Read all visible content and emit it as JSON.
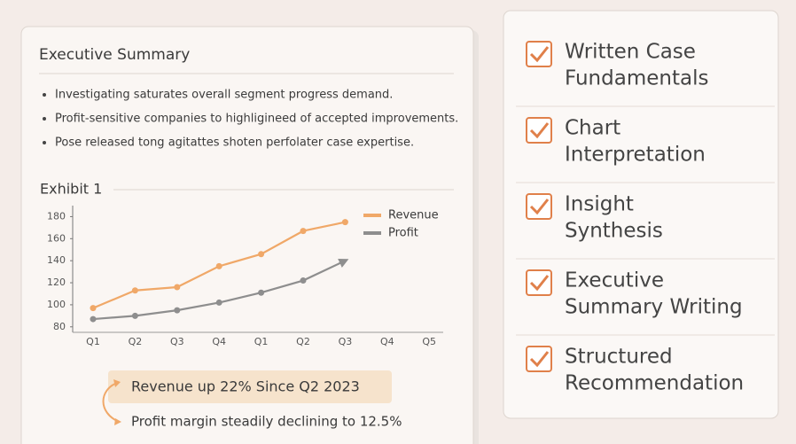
{
  "summary": {
    "title": "Executive Summary",
    "bullets": [
      "Investigating saturates overall segment progress demand.",
      "Profit-sensitive companies to highligineed of accepted improvements.",
      "Pose released tong agitattes shoten perfolater case expertise."
    ]
  },
  "exhibit": {
    "title": "Exhibit 1",
    "chart": {
      "type": "line",
      "categories": [
        "Q1",
        "Q2",
        "Q3",
        "Q4",
        "Q1",
        "Q2",
        "Q3",
        "Q4",
        "Q5"
      ],
      "series": [
        {
          "name": "Revenue",
          "color": "#f0a868",
          "values": [
            97,
            113,
            116,
            135,
            146,
            167,
            175,
            null,
            null
          ]
        },
        {
          "name": "Profit",
          "color": "#8e8e8e",
          "values": [
            87,
            90,
            95,
            102,
            111,
            122,
            140,
            null,
            null
          ]
        }
      ],
      "ylim": [
        75,
        190
      ],
      "yticks": [
        80,
        100,
        120,
        140,
        160,
        180
      ]
    }
  },
  "callouts": [
    "Revenue up 22% Since Q2 2023",
    "Profit margin steadily declining to 12.5%"
  ],
  "checklist": [
    [
      "Written Case",
      "Fundamentals"
    ],
    [
      "Chart",
      "Interpretation"
    ],
    [
      "Insight",
      "Synthesis"
    ],
    [
      "Executive",
      "Summary Writing"
    ],
    [
      "Structured",
      "Recommendation"
    ]
  ]
}
